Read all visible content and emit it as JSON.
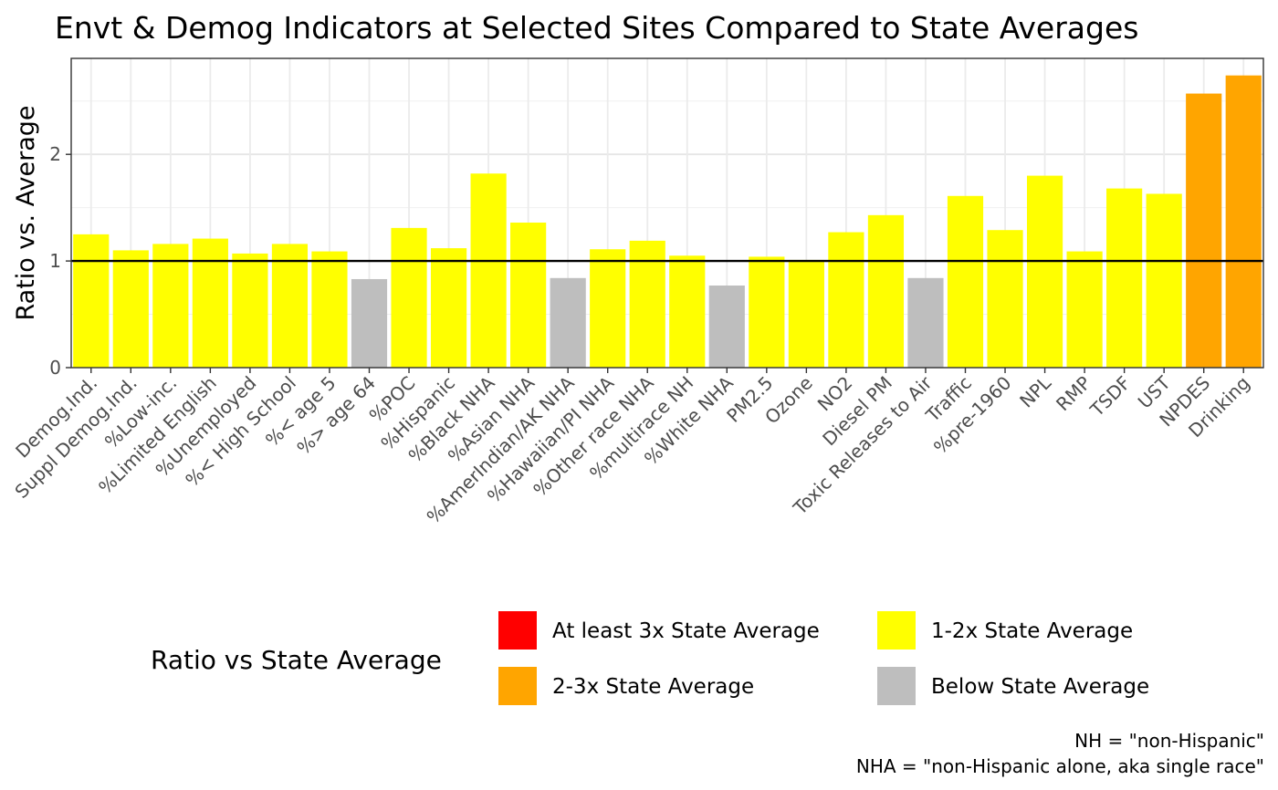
{
  "chart_data": {
    "type": "bar",
    "title": "Envt & Demog Indicators at Selected Sites Compared to State Averages",
    "xlabel": "",
    "ylabel": "Ratio vs. Average",
    "ylim": [
      0,
      2.9
    ],
    "yticks": [
      0,
      1,
      2
    ],
    "reference_line": 1,
    "grid": true,
    "categories": [
      "Demog.Ind.",
      "Suppl Demog.Ind.",
      "%Low-inc.",
      "%Limited English",
      "%Unemployed",
      "%< High School",
      "%< age 5",
      "%> age 64",
      "%POC",
      "%Hispanic",
      "%Black NHA",
      "%Asian NHA",
      "%AmerIndian/AK NHA",
      "%Hawaiian/PI NHA",
      "%Other race NHA",
      "%multirace NH",
      "%White NHA",
      "PM2.5",
      "Ozone",
      "NO2",
      "Diesel PM",
      "Toxic Releases to Air",
      "Traffic",
      "%pre-1960",
      "NPL",
      "RMP",
      "TSDF",
      "UST",
      "NPDES",
      "Drinking"
    ],
    "values": [
      1.25,
      1.1,
      1.16,
      1.21,
      1.07,
      1.16,
      1.09,
      0.83,
      1.31,
      1.12,
      1.82,
      1.36,
      0.84,
      1.11,
      1.19,
      1.05,
      0.77,
      1.04,
      1.01,
      1.27,
      1.43,
      0.84,
      1.61,
      1.29,
      1.8,
      1.09,
      1.68,
      1.63,
      2.57,
      2.74
    ],
    "legend": {
      "title": "Ratio vs State Average",
      "position": "bottom",
      "entries": [
        {
          "label": "At least 3x State Average",
          "color": "#ff0000"
        },
        {
          "label": "2-3x State Average",
          "color": "#ffa500"
        },
        {
          "label": "1-2x State Average",
          "color": "#ffff00"
        },
        {
          "label": "Below State Average",
          "color": "#bebebe"
        }
      ]
    },
    "caption": [
      "NH = \"non-Hispanic\"",
      "NHA = \"non-Hispanic alone, aka single race\""
    ]
  }
}
